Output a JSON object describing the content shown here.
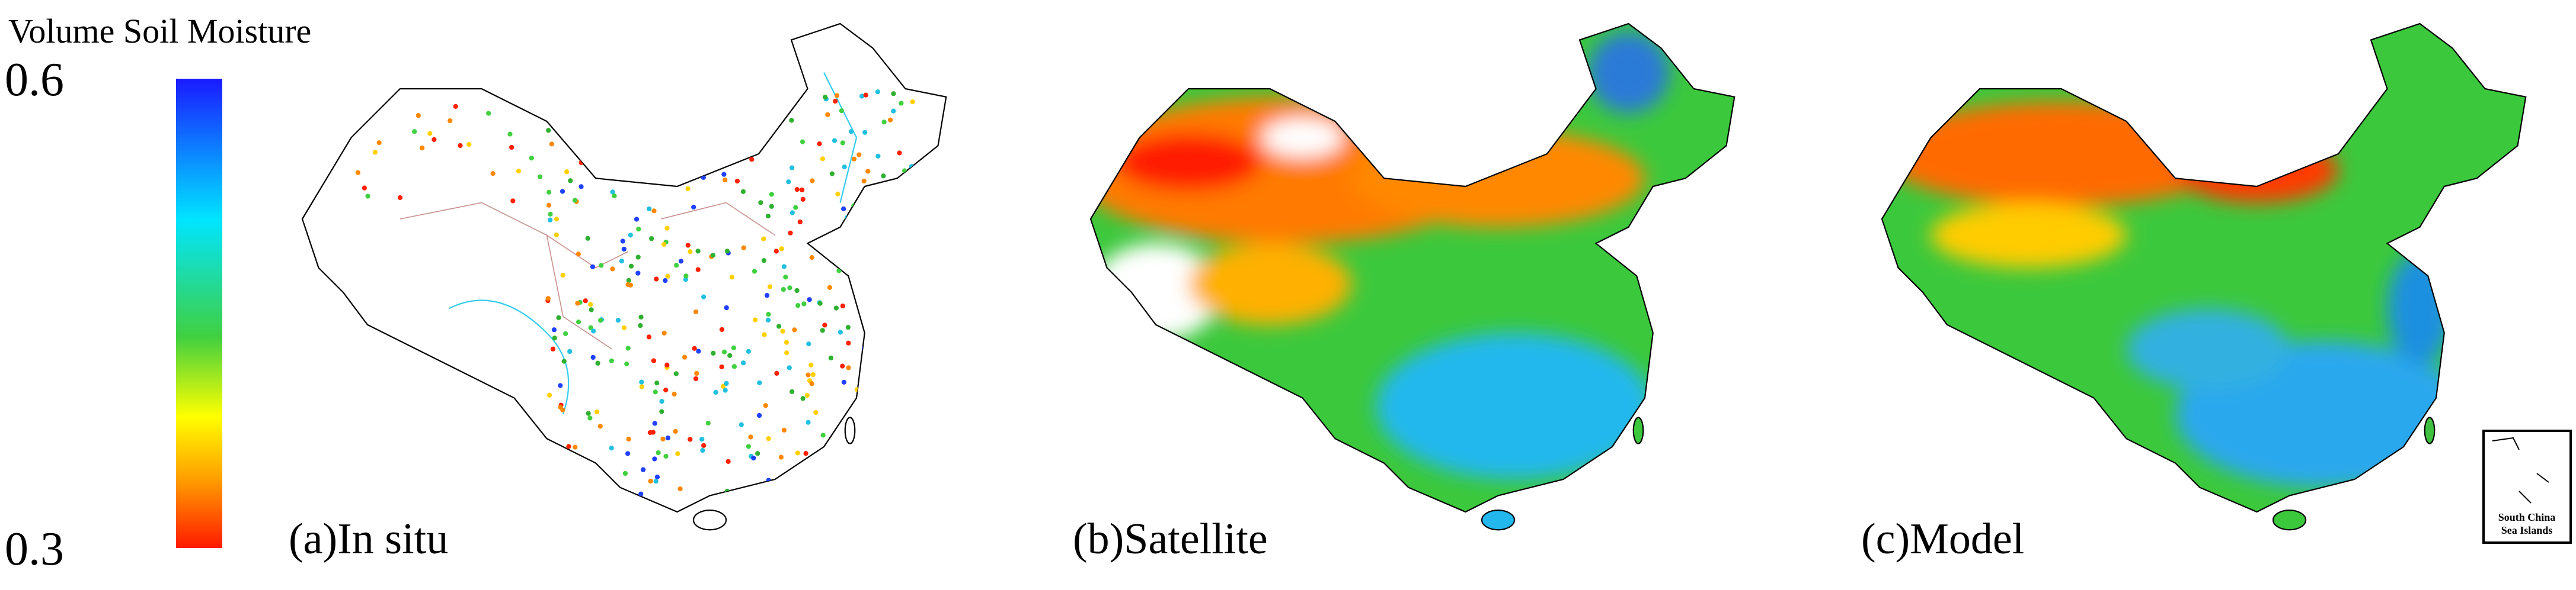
{
  "colorbar": {
    "title": "Volume Soil Moisture",
    "range": [
      0.3,
      0.6
    ],
    "ticks": [
      0.6,
      0.3
    ]
  },
  "panels": [
    {
      "label": "(a)In situ"
    },
    {
      "label": "(b)Satellite"
    },
    {
      "label": "(c)Model"
    }
  ],
  "inset": {
    "lines": [
      "South China",
      "Sea Islands"
    ]
  }
}
